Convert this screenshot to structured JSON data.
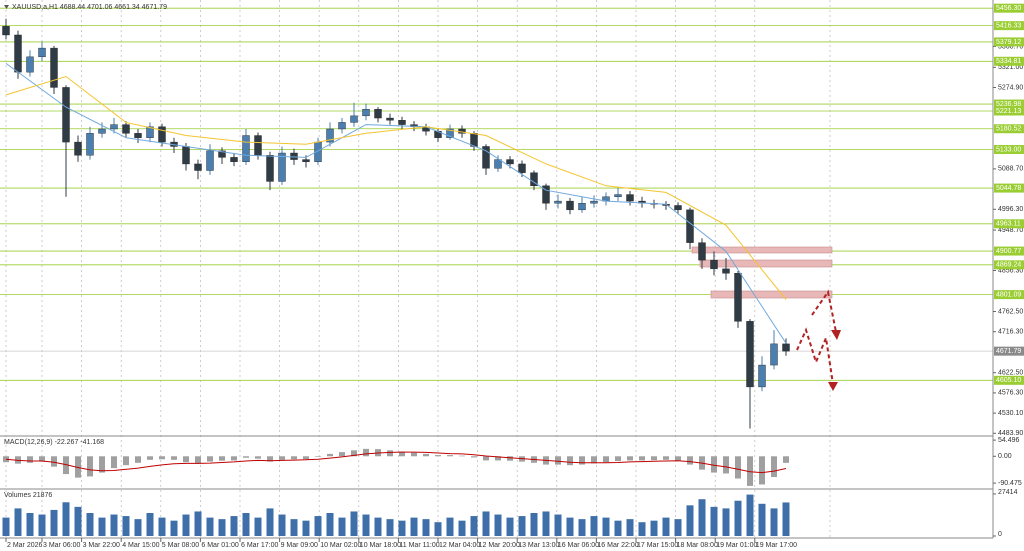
{
  "chart_data": {
    "type": "candlestick",
    "symbol": "XAUUSD,a,H1",
    "ylim": [
      4480,
      5475
    ],
    "grid": true,
    "up_color": "#4a7fb0",
    "down_color": "#2f3b45",
    "level_color": "#9acd32",
    "yticks": [
      {
        "value": 5368.7,
        "label": "5368.70"
      },
      {
        "value": 5321,
        "label": "5321.00"
      },
      {
        "value": 5274.9,
        "label": "5274.90"
      },
      {
        "value": 5088.7,
        "label": "5088.70"
      },
      {
        "value": 4996.3,
        "label": "4996.30"
      },
      {
        "value": 4948.7,
        "label": "4948.70"
      },
      {
        "value": 4856.3,
        "label": "4856.30"
      },
      {
        "value": 4762.5,
        "label": "4762.50"
      },
      {
        "value": 4716.3,
        "label": "4716.30"
      },
      {
        "value": 4622.5,
        "label": "4622.50"
      },
      {
        "value": 4576.3,
        "label": "4576.30"
      },
      {
        "value": 4530.1,
        "label": "4530.10"
      },
      {
        "value": 4483.9,
        "label": "4483.90"
      }
    ],
    "levels": [
      {
        "value": 5456.3,
        "label": "5456.30"
      },
      5416.33,
      5379.12,
      5334.81,
      5236.98,
      5221.13,
      5180.52,
      {
        "value": 5133,
        "label": "5133.00"
      },
      5044.78,
      4963.11,
      4900.77,
      4869.24,
      4801.09,
      {
        "value": 4605.1,
        "label": "4605.10"
      }
    ],
    "open": [
      5415,
      5395,
      5310,
      5345,
      5365,
      5275,
      5150,
      5120,
      5170,
      5180,
      5190,
      5170,
      5160,
      5185,
      5150,
      5140,
      5100,
      5085,
      5130,
      5115,
      5105,
      5165,
      5120,
      5060,
      5125,
      5110,
      5105,
      5150,
      5180,
      5195,
      5210,
      5225,
      5205,
      5200,
      5190,
      5185,
      5175,
      5160,
      5180,
      5170,
      5140,
      5090,
      5110,
      5100,
      5080,
      5050,
      5010,
      5015,
      4995,
      5010,
      5015,
      5025,
      5030,
      5015,
      5010,
      5008,
      5005,
      4995,
      4920,
      4880,
      4860,
      4850,
      4740,
      4590,
      4640,
      4688.44
    ],
    "high": [
      5432,
      5405,
      5360,
      5380,
      5370,
      5280,
      5165,
      5185,
      5195,
      5205,
      5198,
      5180,
      5195,
      5192,
      5160,
      5148,
      5110,
      5145,
      5138,
      5125,
      5180,
      5172,
      5128,
      5140,
      5135,
      5120,
      5160,
      5195,
      5205,
      5240,
      5238,
      5230,
      5215,
      5208,
      5198,
      5192,
      5182,
      5190,
      5188,
      5175,
      5145,
      5120,
      5118,
      5108,
      5085,
      5055,
      5030,
      5022,
      5025,
      5028,
      5035,
      5045,
      5038,
      5025,
      5018,
      5015,
      5012,
      5000,
      4930,
      4900,
      4885,
      4855,
      4745,
      4660,
      4720,
      4701.06
    ],
    "low": [
      5385,
      5295,
      5300,
      5335,
      5260,
      5025,
      5105,
      5110,
      5160,
      5170,
      5160,
      5148,
      5150,
      5140,
      5125,
      5085,
      5065,
      5075,
      5100,
      5095,
      5098,
      5110,
      5040,
      5052,
      5098,
      5092,
      5098,
      5140,
      5170,
      5185,
      5200,
      5195,
      5190,
      5180,
      5175,
      5165,
      5150,
      5155,
      5160,
      5130,
      5075,
      5082,
      5090,
      5070,
      5040,
      4995,
      4998,
      4985,
      4988,
      5000,
      5005,
      5015,
      5005,
      5000,
      4998,
      4995,
      4985,
      4905,
      4860,
      4845,
      4835,
      4725,
      4495,
      4580,
      4630,
      4661.34
    ],
    "close": [
      5395,
      5310,
      5345,
      5365,
      5275,
      5150,
      5120,
      5170,
      5180,
      5190,
      5170,
      5160,
      5185,
      5150,
      5140,
      5100,
      5085,
      5130,
      5115,
      5105,
      5165,
      5120,
      5060,
      5125,
      5110,
      5105,
      5150,
      5180,
      5195,
      5210,
      5225,
      5205,
      5200,
      5190,
      5185,
      5175,
      5160,
      5180,
      5170,
      5140,
      5090,
      5110,
      5100,
      5080,
      5050,
      5010,
      5015,
      4995,
      5010,
      5015,
      5025,
      5030,
      5015,
      5010,
      5008,
      5005,
      4995,
      4920,
      4880,
      4860,
      4850,
      4740,
      4590,
      4640,
      4688.44,
      4671.79
    ],
    "moving_averages": [
      {
        "color": "#6fa8dc",
        "x": [
          0,
          5,
          10,
          15,
          20,
          25,
          30,
          35,
          40,
          45,
          50,
          55,
          60,
          65
        ],
        "values": [
          5330,
          5230,
          5160,
          5140,
          5120,
          5115,
          5190,
          5185,
          5130,
          5040,
          5015,
          5008,
          4900,
          4690
        ]
      },
      {
        "color": "#f4c430",
        "x": [
          0,
          5,
          10,
          15,
          20,
          25,
          30,
          35,
          40,
          45,
          50,
          55,
          60,
          65
        ],
        "values": [
          5258,
          5300,
          5195,
          5165,
          5150,
          5145,
          5170,
          5185,
          5165,
          5100,
          5050,
          5035,
          4960,
          4790
        ]
      }
    ],
    "xticks": [
      {
        "value": 0,
        "label": "2 Mar 2026"
      },
      {
        "value": 3,
        "label": "3 Mar 06:00"
      },
      {
        "value": 6.3,
        "label": "3 Mar 22:00"
      },
      {
        "value": 9.6,
        "label": "4 Mar 15:00"
      },
      {
        "value": 12.9,
        "label": "5 Mar 08:00"
      },
      {
        "value": 16.2,
        "label": "6 Mar 01:00"
      },
      {
        "value": 19.5,
        "label": "6 Mar 17:00"
      },
      {
        "value": 22.8,
        "label": "9 Mar 09:00"
      },
      {
        "value": 26.1,
        "label": "10 Mar 02:00"
      },
      {
        "value": 29.4,
        "label": "10 Mar 18:00"
      },
      {
        "value": 32.7,
        "label": "11 Mar 11:00"
      },
      {
        "value": 36,
        "label": "12 Mar 04:00"
      },
      {
        "value": 39.3,
        "label": "12 Mar 20:00"
      },
      {
        "value": 42.6,
        "label": "13 Mar 13:00"
      },
      {
        "value": 45.9,
        "label": "16 Mar 06:00"
      },
      {
        "value": 49.2,
        "label": "16 Mar 22:00"
      },
      {
        "value": 52.5,
        "label": "17 Mar 15:00"
      },
      {
        "value": 55.8,
        "label": "18 Mar 08:00"
      },
      {
        "value": 59.1,
        "label": "19 Mar 01:00"
      },
      {
        "value": 62.4,
        "label": "19 Mar 17:00"
      }
    ],
    "macd": {
      "label": "MACD(12,26,9)",
      "ylim": [
        -107,
        65
      ],
      "yticks": [
        54.496,
        {
          "value": 0,
          "label": "0.00"
        },
        -90.475
      ],
      "hist_color": "#a0a0a0",
      "signal_color": "#c00000",
      "histogram": [
        -20,
        -25,
        -22,
        -18,
        -35,
        -60,
        -72,
        -68,
        -55,
        -40,
        -30,
        -22,
        -12,
        -10,
        -12,
        -20,
        -25,
        -18,
        -15,
        -14,
        -5,
        -8,
        -18,
        -12,
        -10,
        -10,
        -2,
        8,
        14,
        20,
        25,
        24,
        20,
        16,
        12,
        8,
        4,
        4,
        2,
        -4,
        -14,
        -14,
        -15,
        -18,
        -22,
        -28,
        -28,
        -30,
        -28,
        -24,
        -20,
        -16,
        -14,
        -14,
        -13,
        -12,
        -14,
        -28,
        -45,
        -55,
        -58,
        -75,
        -100,
        -95,
        -70,
        -22.267
      ],
      "signal": [
        -10,
        -14,
        -16,
        -16,
        -20,
        -28,
        -38,
        -46,
        -49,
        -48,
        -44,
        -40,
        -34,
        -29,
        -25,
        -24,
        -24,
        -23,
        -21,
        -19,
        -16,
        -14,
        -15,
        -14,
        -13,
        -12,
        -10,
        -6,
        -2,
        3,
        8,
        11,
        13,
        14,
        14,
        13,
        11,
        9,
        8,
        5,
        1,
        -2,
        -5,
        -8,
        -11,
        -14,
        -17,
        -20,
        -22,
        -22,
        -22,
        -21,
        -19,
        -18,
        -17,
        -16,
        -15,
        -18,
        -23,
        -30,
        -36,
        -44,
        -52,
        -55,
        -50,
        -41.168
      ]
    },
    "volume": {
      "label": "Volumes",
      "ylim": [
        0,
        30000
      ],
      "yticks": [
        27414,
        0
      ],
      "color": "#3f6fa8",
      "values": [
        12000,
        18000,
        15000,
        14000,
        17000,
        22000,
        19000,
        15000,
        12000,
        14000,
        13000,
        11000,
        15000,
        12000,
        10000,
        14000,
        16000,
        12000,
        11000,
        13000,
        15000,
        12000,
        18000,
        14000,
        11000,
        10000,
        13000,
        15000,
        12000,
        16000,
        14000,
        12000,
        11000,
        10000,
        12000,
        11000,
        9000,
        12000,
        10000,
        13000,
        16000,
        14000,
        12000,
        13000,
        15000,
        16000,
        14000,
        12000,
        11000,
        13000,
        12000,
        10000,
        11000,
        9000,
        10000,
        12000,
        11000,
        20000,
        24000,
        19000,
        18000,
        23000,
        27000,
        21000,
        18000,
        21876
      ]
    }
  }
}
